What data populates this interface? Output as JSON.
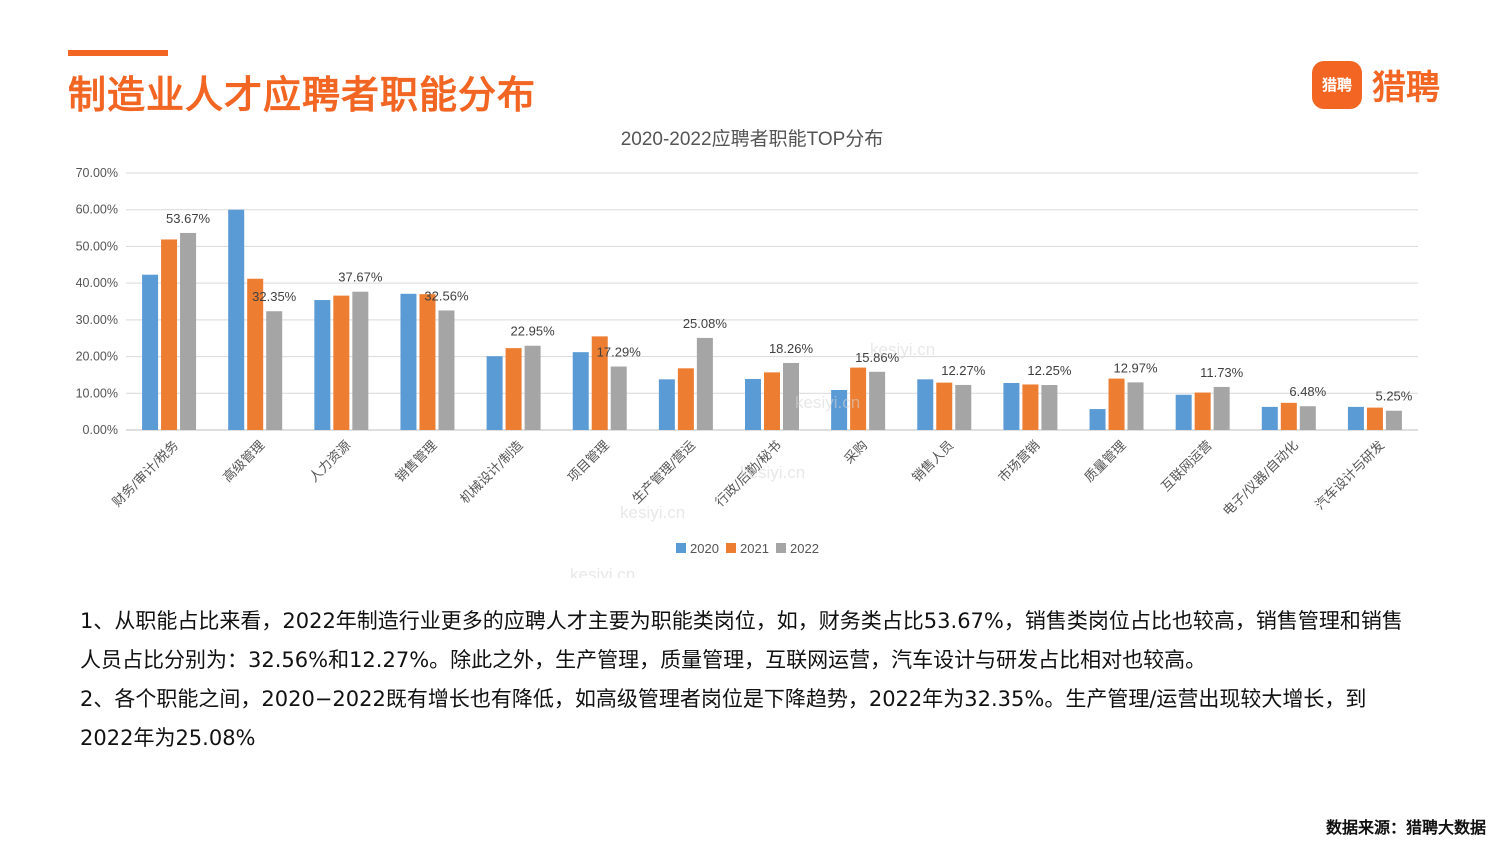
{
  "header": {
    "title": "制造业人才应聘者职能分布",
    "logo_badge": "猎聘",
    "logo_text": "猎聘"
  },
  "colors": {
    "accent": "#f26522",
    "series_2020": "#5b9bd5",
    "series_2021": "#ed7d31",
    "series_2022": "#a5a5a5"
  },
  "chart_data": {
    "type": "bar",
    "title": "2020-2022应聘者职能TOP分布",
    "categories": [
      "财务/审计/税务",
      "高级管理",
      "人力资源",
      "销售管理",
      "机械设计/制造",
      "项目管理",
      "生产管理/营运",
      "行政/后勤/秘书",
      "采购",
      "销售人员",
      "市场营销",
      "质量管理",
      "互联网运营",
      "电子/仪器/自动化",
      "汽车设计与研发"
    ],
    "series": [
      {
        "name": "2020",
        "color": "#5b9bd5",
        "values": [
          42.3,
          60.0,
          35.4,
          37.1,
          20.1,
          21.2,
          13.8,
          13.9,
          10.9,
          13.8,
          12.8,
          5.7,
          9.6,
          6.3,
          6.3
        ]
      },
      {
        "name": "2021",
        "color": "#ed7d31",
        "values": [
          51.9,
          41.2,
          36.6,
          37.0,
          22.3,
          25.5,
          16.8,
          15.7,
          17.0,
          12.9,
          12.4,
          14.0,
          10.2,
          7.4,
          6.1
        ]
      },
      {
        "name": "2022",
        "color": "#a5a5a5",
        "values": [
          53.67,
          32.35,
          37.67,
          32.56,
          22.95,
          17.29,
          25.08,
          18.26,
          15.86,
          12.27,
          12.25,
          12.97,
          11.73,
          6.48,
          5.25
        ]
      }
    ],
    "data_labels": [
      "53.67%",
      "32.35%",
      "37.67%",
      "32.56%",
      "22.95%",
      "17.29%",
      "25.08%",
      "18.26%",
      "15.86%",
      "12.27%",
      "12.25%",
      "12.97%",
      "11.73%",
      "6.48%",
      "5.25%"
    ],
    "y_ticks": [
      "0.00%",
      "10.00%",
      "20.00%",
      "30.00%",
      "40.00%",
      "50.00%",
      "60.00%",
      "70.00%"
    ],
    "ylim": [
      0,
      70
    ],
    "grid": true,
    "legend_position": "bottom"
  },
  "watermark": "kesiyi.cn",
  "notes": {
    "line1": "1、从职能占比来看，2022年制造行业更多的应聘人才主要为职能类岗位，如，财务类占比53.67%，销售类岗位占比也较高，销售管理和销售人员占比分别为：32.56%和12.27%。除此之外，生产管理，质量管理，互联网运营，汽车设计与研发占比相对也较高。",
    "line2": "2、各个职能之间，2020−2022既有增长也有降低，如高级管理者岗位是下降趋势，2022年为32.35%。生产管理/运营出现较大增长，到2022年为25.08%"
  },
  "source": "数据来源：猎聘大数据"
}
